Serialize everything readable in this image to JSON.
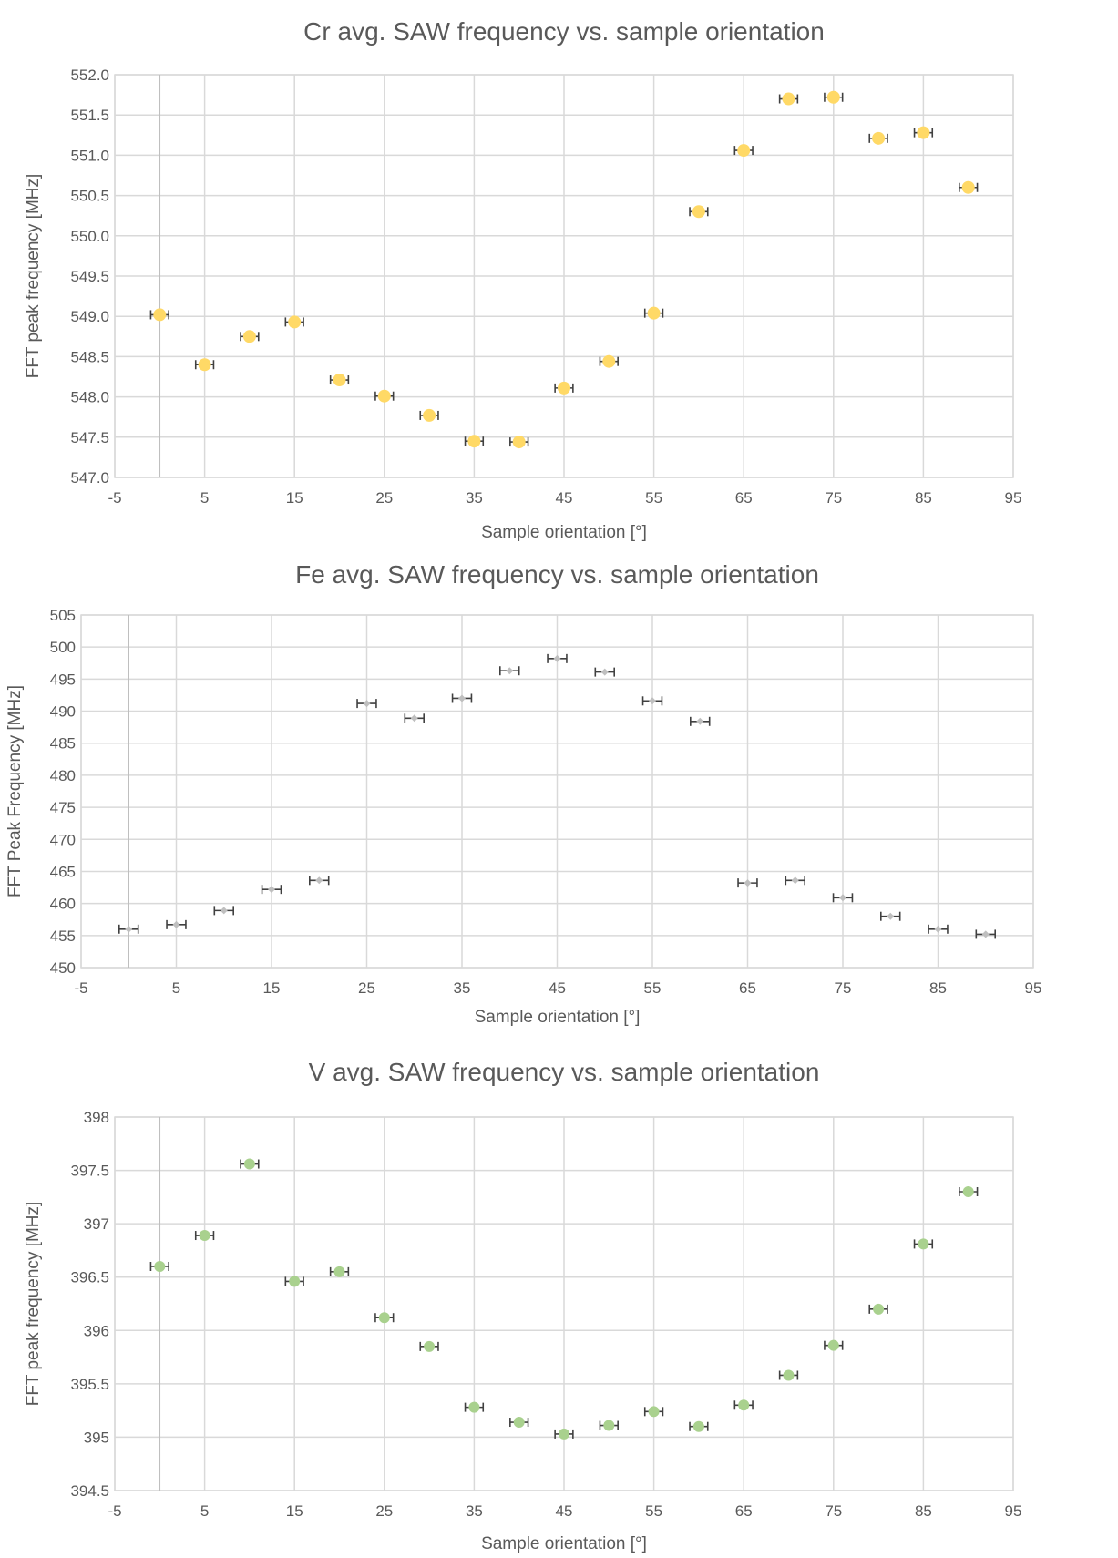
{
  "chart_data": [
    {
      "type": "scatter",
      "title": "Cr avg. SAW frequency vs. sample orientation",
      "xlabel": "Sample orientation [°]",
      "ylabel": "FFT peak frequency [MHz]",
      "xlim": [
        -5,
        95
      ],
      "ylim": [
        547.0,
        552.0
      ],
      "xticks": [
        -5,
        5,
        15,
        25,
        35,
        45,
        55,
        65,
        75,
        85,
        95
      ],
      "xtick_labels": [
        "-5",
        "5",
        "15",
        "25",
        "35",
        "45",
        "55",
        "65",
        "75",
        "85",
        "95"
      ],
      "yticks": [
        547.0,
        547.5,
        548.0,
        548.5,
        549.0,
        549.5,
        550.0,
        550.5,
        551.0,
        551.5,
        552.0
      ],
      "ytick_labels": [
        "547.0",
        "547.5",
        "548.0",
        "548.5",
        "549.0",
        "549.5",
        "550.0",
        "550.5",
        "551.0",
        "551.5",
        "552.0"
      ],
      "grid": true,
      "marker": "circle",
      "color": "#FFD966",
      "x_error": 1,
      "x": [
        0,
        5,
        10,
        15,
        20,
        25,
        30,
        35,
        40,
        45,
        50,
        55,
        60,
        65,
        70,
        75,
        80,
        85,
        90
      ],
      "y": [
        549.02,
        548.4,
        548.75,
        548.93,
        548.21,
        548.01,
        547.77,
        547.45,
        547.44,
        548.11,
        548.44,
        549.04,
        550.3,
        551.06,
        551.7,
        551.72,
        551.21,
        551.28,
        550.6
      ]
    },
    {
      "type": "scatter",
      "title": "Fe avg. SAW frequency vs. sample orientation",
      "xlabel": "Sample orientation [°]",
      "ylabel": "FFT Peak Frequency [MHz]",
      "xlim": [
        -5,
        95
      ],
      "ylim": [
        450,
        505
      ],
      "xticks": [
        -5,
        5,
        15,
        25,
        35,
        45,
        55,
        65,
        75,
        85,
        95
      ],
      "xtick_labels": [
        "-5",
        "5",
        "15",
        "25",
        "35",
        "45",
        "55",
        "65",
        "75",
        "85",
        "95"
      ],
      "yticks": [
        450,
        455,
        460,
        465,
        470,
        475,
        480,
        485,
        490,
        495,
        500,
        505
      ],
      "ytick_labels": [
        "450",
        "455",
        "460",
        "465",
        "470",
        "475",
        "480",
        "485",
        "490",
        "495",
        "500",
        "505"
      ],
      "grid": true,
      "marker": "diamond",
      "color": "#BFBFBF",
      "x_error": 1,
      "x": [
        0,
        5,
        10,
        15,
        20,
        25,
        30,
        35,
        40,
        45,
        50,
        55,
        60,
        65,
        70,
        75,
        80,
        85,
        90
      ],
      "y": [
        456.0,
        456.7,
        458.9,
        462.2,
        463.6,
        491.2,
        488.9,
        492.0,
        496.3,
        498.2,
        496.1,
        491.6,
        488.4,
        463.2,
        463.6,
        460.9,
        458.0,
        456.0,
        455.2
      ]
    },
    {
      "type": "scatter",
      "title": "V avg. SAW frequency vs. sample orientation",
      "xlabel": "Sample orientation [°]",
      "ylabel": "FFT peak frequency [MHz]",
      "xlim": [
        -5,
        95
      ],
      "ylim": [
        394.5,
        398
      ],
      "xticks": [
        -5,
        5,
        15,
        25,
        35,
        45,
        55,
        65,
        75,
        85,
        95
      ],
      "xtick_labels": [
        "-5",
        "5",
        "15",
        "25",
        "35",
        "45",
        "55",
        "65",
        "75",
        "85",
        "95"
      ],
      "yticks": [
        394.5,
        395,
        395.5,
        396,
        396.5,
        397,
        397.5,
        398
      ],
      "ytick_labels": [
        "394.5",
        "395",
        "395.5",
        "396",
        "396.5",
        "397",
        "397.5",
        "398"
      ],
      "grid": true,
      "marker": "circle",
      "color": "#A9D18E",
      "x_error": 1,
      "x": [
        0,
        5,
        10,
        15,
        20,
        25,
        30,
        35,
        40,
        45,
        50,
        55,
        60,
        65,
        70,
        75,
        80,
        85,
        90
      ],
      "y": [
        396.6,
        396.89,
        397.56,
        396.46,
        396.55,
        396.12,
        395.85,
        395.28,
        395.14,
        395.03,
        395.11,
        395.24,
        395.1,
        395.3,
        395.58,
        395.86,
        396.2,
        396.81,
        397.3
      ]
    }
  ]
}
